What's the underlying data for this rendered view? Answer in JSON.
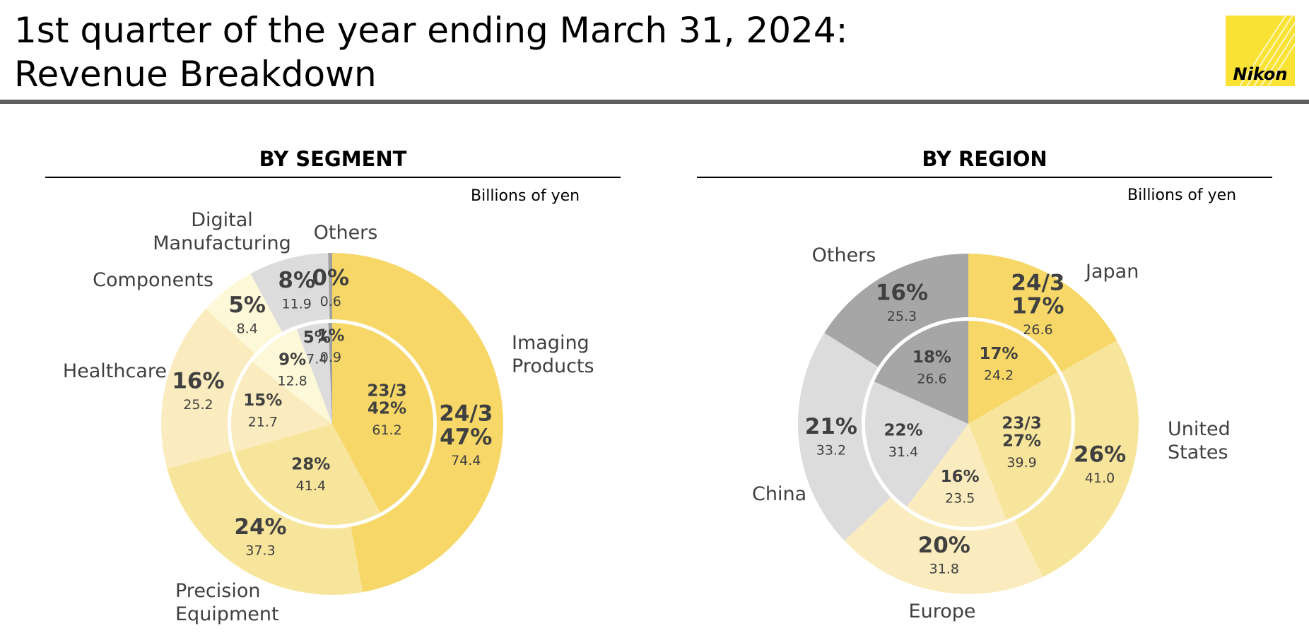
{
  "header": {
    "title_line1": "1st quarter of the year ending March 31, 2024:",
    "title_line2": "Revenue Breakdown",
    "logo_text": "Nikon"
  },
  "chart_data": [
    {
      "type": "pie",
      "subtype": "double-donut",
      "title": "BY SEGMENT",
      "units": "Billions of yen",
      "outer_ring_label": "24/3",
      "inner_ring_label": "23/3",
      "categories": [
        "Imaging Products",
        "Precision Equipment",
        "Healthcare",
        "Components",
        "Digital Manufacturing",
        "Others"
      ],
      "colors": [
        "#f6d767",
        "#f8e59c",
        "#faecbe",
        "#fdf9d8",
        "#dcdcdc",
        "#a0a0a0"
      ],
      "series": [
        {
          "name": "24/3",
          "ring": "outer",
          "values": [
            74.4,
            37.3,
            25.2,
            8.4,
            11.9,
            0.6
          ],
          "percents": [
            "47%",
            "24%",
            "16%",
            "5%",
            "8%",
            "0%"
          ]
        },
        {
          "name": "23/3",
          "ring": "inner",
          "values": [
            61.2,
            41.4,
            21.7,
            12.8,
            7.4,
            0.9
          ],
          "percents": [
            "42%",
            "28%",
            "15%",
            "9%",
            "5%",
            "1%"
          ]
        }
      ]
    },
    {
      "type": "pie",
      "subtype": "double-donut",
      "title": "BY REGION",
      "units": "Billions of yen",
      "outer_ring_label": "24/3",
      "inner_ring_label": "23/3",
      "categories": [
        "Japan",
        "United States",
        "Europe",
        "China",
        "Others"
      ],
      "colors": [
        "#f6d767",
        "#f8e59c",
        "#faecbe",
        "#dcdcdc",
        "#a6a6a6"
      ],
      "series": [
        {
          "name": "24/3",
          "ring": "outer",
          "values": [
            26.6,
            41.0,
            31.8,
            33.2,
            25.3
          ],
          "percents": [
            "17%",
            "26%",
            "20%",
            "21%",
            "16%"
          ]
        },
        {
          "name": "23/3",
          "ring": "inner",
          "values": [
            24.2,
            39.9,
            23.5,
            31.4,
            26.6
          ],
          "percents": [
            "17%",
            "27%",
            "16%",
            "22%",
            "18%"
          ]
        }
      ]
    }
  ]
}
